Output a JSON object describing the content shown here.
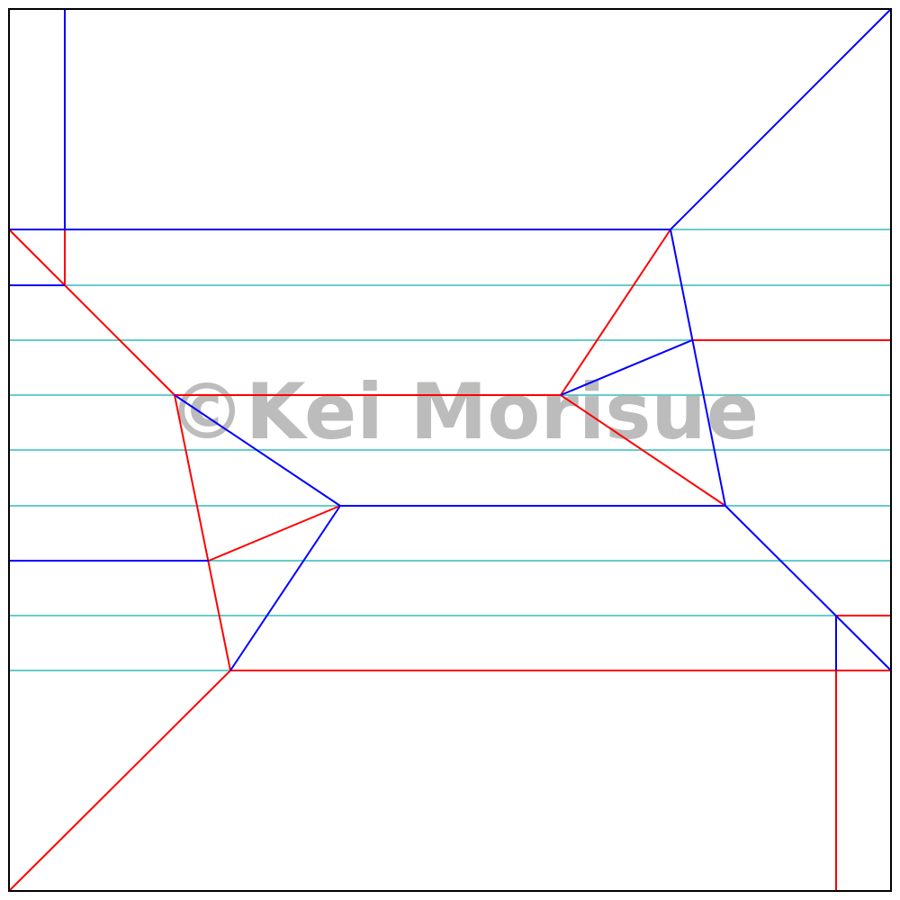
{
  "diagram": {
    "type": "origami-crease-pattern",
    "watermark": "©Kei Morisue",
    "colors": {
      "border": "#000000",
      "mountain": "#0000ff",
      "valley": "#ff0000",
      "guide": "#66cccc",
      "watermark": "#a6a6a6"
    }
  }
}
